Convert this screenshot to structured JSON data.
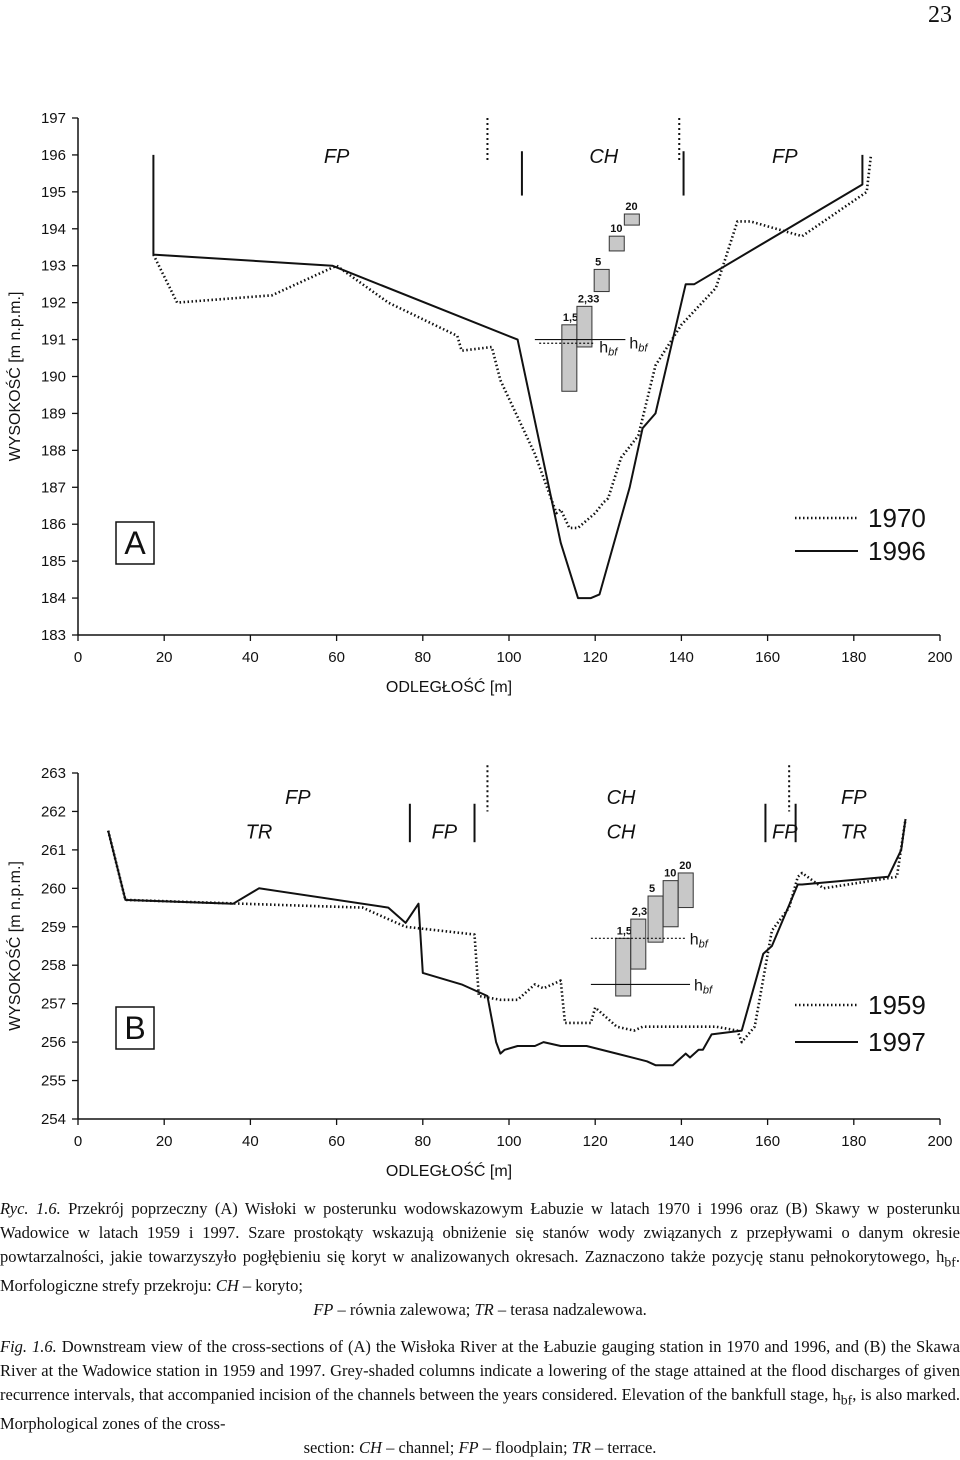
{
  "page_number": "23",
  "chart_data": [
    {
      "type": "line",
      "panel": "A",
      "xlabel": "ODLEGŁOŚĆ  [m]",
      "ylabel": "WYSOKOŚĆ   [m n.p.m.]",
      "xlim": [
        0,
        200
      ],
      "ylim": [
        183,
        197
      ],
      "x_ticks": [
        0,
        20,
        40,
        60,
        80,
        100,
        120,
        140,
        160,
        180,
        200
      ],
      "y_ticks": [
        183,
        184,
        185,
        186,
        187,
        188,
        189,
        190,
        191,
        192,
        193,
        194,
        195,
        196,
        197
      ],
      "zones": [
        {
          "label": "FP",
          "x": 60,
          "y": 196
        },
        {
          "label": "CH",
          "x": 122,
          "y": 196
        },
        {
          "label": "FP",
          "x": 164,
          "y": 196
        }
      ],
      "zone_dividers": [
        {
          "x": 95,
          "ymin": 195.8,
          "ymax": 197,
          "style": "dotted"
        },
        {
          "x": 103,
          "ymin": 194.9,
          "ymax": 196.1,
          "style": "solid"
        },
        {
          "x": 139.5,
          "ymin": 195.8,
          "ymax": 197,
          "style": "dotted"
        },
        {
          "x": 140.5,
          "ymin": 194.9,
          "ymax": 196.1,
          "style": "solid"
        }
      ],
      "series": [
        {
          "name": "1970",
          "style": "dotted",
          "x": [
            17.5,
            23,
            45,
            60,
            72,
            88,
            89,
            96,
            98,
            106,
            111,
            112,
            114,
            116,
            120,
            122,
            123,
            126,
            130,
            134,
            140,
            148,
            153,
            156,
            168,
            183,
            184
          ],
          "y": [
            193.3,
            192.0,
            192.2,
            193.0,
            192.0,
            191.1,
            190.7,
            190.8,
            189.9,
            187.9,
            186.3,
            186.4,
            185.9,
            185.9,
            186.3,
            186.6,
            186.7,
            187.8,
            188.4,
            190.3,
            191.4,
            192.4,
            194.2,
            194.2,
            193.8,
            195.0,
            196.0
          ]
        },
        {
          "name": "1996",
          "style": "solid",
          "x": [
            17.5,
            17.5,
            59,
            102,
            112,
            116,
            119,
            121,
            128,
            131,
            134,
            141,
            143,
            182,
            182
          ],
          "y": [
            196.0,
            193.3,
            193.0,
            191.0,
            185.5,
            184.0,
            184.0,
            184.1,
            187.0,
            188.6,
            189.0,
            192.5,
            192.5,
            195.2,
            196.0
          ]
        }
      ],
      "return_period_bars": [
        {
          "label": "1,5",
          "x": 114,
          "top": 191.4,
          "bottom": 189.6
        },
        {
          "label": "2,33",
          "x": 117.5,
          "top": 191.9,
          "bottom": 190.8
        },
        {
          "label": "5",
          "x": 121.5,
          "top": 192.9,
          "bottom": 192.3
        },
        {
          "label": "10",
          "x": 125,
          "top": 193.8,
          "bottom": 193.4
        },
        {
          "label": "20",
          "x": 128.5,
          "top": 194.4,
          "bottom": 194.1
        }
      ],
      "bankfull": {
        "label": "h",
        "subscript": "bf",
        "levels": [
          {
            "y": 190.9,
            "style": "dotted",
            "x": [
              107,
              120
            ]
          },
          {
            "y": 191.0,
            "style": "solid",
            "x": [
              106,
              127
            ]
          }
        ]
      },
      "legend": {
        "position": "right",
        "entries": [
          {
            "label": "1970",
            "style": "dotted"
          },
          {
            "label": "1996",
            "style": "solid"
          }
        ]
      }
    },
    {
      "type": "line",
      "panel": "B",
      "xlabel": "ODLEGŁOŚĆ  [m]",
      "ylabel": "WYSOKOŚĆ   [m n.p.m.]",
      "xlim": [
        0,
        200
      ],
      "ylim": [
        254,
        263
      ],
      "x_ticks": [
        0,
        20,
        40,
        60,
        80,
        100,
        120,
        140,
        160,
        180,
        200
      ],
      "y_ticks": [
        254,
        255,
        256,
        257,
        258,
        259,
        260,
        261,
        262,
        263
      ],
      "zones": [
        {
          "label": "FP",
          "x": 51,
          "y": 262.4
        },
        {
          "label": "TR",
          "x": 42,
          "y": 261.5
        },
        {
          "label": "FP",
          "x": 85,
          "y": 261.5
        },
        {
          "label": "CH",
          "x": 126,
          "y": 262.4
        },
        {
          "label": "CH",
          "x": 126,
          "y": 261.5
        },
        {
          "label": "FP",
          "x": 164,
          "y": 261.5
        },
        {
          "label": "FP",
          "x": 180,
          "y": 262.4
        },
        {
          "label": "TR",
          "x": 180,
          "y": 261.5
        }
      ],
      "zone_dividers": [
        {
          "x": 77,
          "ymin": 261.2,
          "ymax": 262.2,
          "style": "solid"
        },
        {
          "x": 92,
          "ymin": 261.2,
          "ymax": 262.2,
          "style": "solid"
        },
        {
          "x": 95,
          "ymin": 262.0,
          "ymax": 263.2,
          "style": "dotted"
        },
        {
          "x": 159.5,
          "ymin": 261.2,
          "ymax": 262.2,
          "style": "solid"
        },
        {
          "x": 165,
          "ymin": 262.0,
          "ymax": 263.2,
          "style": "dotted"
        },
        {
          "x": 166.5,
          "ymin": 261.2,
          "ymax": 262.2,
          "style": "solid"
        }
      ],
      "series": [
        {
          "name": "1959",
          "style": "dotted",
          "x": [
            7,
            11,
            38,
            66,
            76,
            92,
            93,
            98,
            102,
            106,
            108,
            112,
            113,
            119,
            120,
            125,
            129,
            131,
            137,
            141,
            148,
            153,
            154,
            157,
            161,
            165,
            167,
            168,
            173,
            190,
            192
          ],
          "y": [
            261.5,
            259.7,
            259.6,
            259.5,
            259.0,
            258.8,
            257.2,
            257.1,
            257.1,
            257.5,
            257.4,
            257.6,
            256.5,
            256.5,
            256.9,
            256.4,
            256.3,
            256.4,
            256.4,
            256.4,
            256.4,
            256.3,
            256.0,
            256.4,
            258.9,
            259.5,
            260.3,
            260.4,
            260.0,
            260.3,
            261.8
          ]
        },
        {
          "name": "1997",
          "style": "solid",
          "x": [
            7,
            11,
            36,
            42,
            72,
            76,
            79,
            80,
            89,
            95,
            97,
            98,
            99,
            102,
            106,
            108,
            112,
            118,
            125,
            132,
            134,
            137,
            138,
            141,
            142,
            144,
            145,
            147,
            154,
            159,
            161,
            167,
            168,
            188,
            191,
            192
          ],
          "y": [
            261.5,
            259.7,
            259.6,
            260.0,
            259.5,
            259.1,
            259.6,
            257.8,
            257.5,
            257.2,
            256.0,
            255.7,
            255.8,
            255.9,
            255.9,
            256.0,
            255.9,
            255.9,
            255.7,
            255.5,
            255.4,
            255.4,
            255.4,
            255.7,
            255.6,
            255.8,
            255.8,
            256.2,
            256.3,
            258.3,
            258.5,
            260.1,
            260.1,
            260.3,
            261.0,
            261.8
          ]
        }
      ],
      "return_period_bars": [
        {
          "label": "1,5",
          "x": 126.5,
          "top": 258.7,
          "bottom": 257.2
        },
        {
          "label": "2,33",
          "x": 130,
          "top": 259.2,
          "bottom": 257.9
        },
        {
          "label": "5",
          "x": 134,
          "top": 259.8,
          "bottom": 258.6
        },
        {
          "label": "10",
          "x": 137.5,
          "top": 260.2,
          "bottom": 259.0
        },
        {
          "label": "20",
          "x": 141,
          "top": 260.4,
          "bottom": 259.5
        }
      ],
      "bankfull": {
        "label": "h",
        "subscript": "bf",
        "levels": [
          {
            "y": 258.7,
            "style": "dotted",
            "x": [
              119,
              141
            ]
          },
          {
            "y": 257.5,
            "style": "solid",
            "x": [
              119,
              142
            ]
          }
        ]
      },
      "legend": {
        "position": "right",
        "entries": [
          {
            "label": "1959",
            "style": "dotted"
          },
          {
            "label": "1997",
            "style": "solid"
          }
        ]
      }
    }
  ],
  "caption_pl": {
    "prefix": "Ryc. 1.6.",
    "line1": "Przekrój poprzeczny (A) Wisłoki w posterunku wodowskazowym Łabuzie w latach 1970 i 1996 oraz (B) Skawy w posterunku Wadowice w latach 1959 i 1997. Szare prostokąty wskazują obniżenie się stanów wody związanych z przepływami o danym okresie powtarzalności, jakie towarzyszyło pogłębieniu się koryt w analizowanych okresach. Zaznaczono także pozycję stanu pełnokorytowego, h",
    "sub": "bf",
    "line2": ". Morfologiczne strefy przekroju: ",
    "ch": "CH",
    "ch_desc": " – koryto;",
    "fp": "FP",
    "fp_desc": " – równia zalewowa; ",
    "tr": "TR",
    "tr_desc": " – terasa nadzalewowa."
  },
  "caption_en": {
    "prefix": "Fig. 1.6.",
    "line1": "Downstream view of the cross-sections of (A) the Wisłoka River at the Łabuzie gauging station in 1970 and 1996, and (B) the Skawa River at the Wadowice station in 1959 and 1997. Grey-shaded columns indicate a lowering of the stage attained at the flood discharges of given recurrence intervals, that accompanied incision of the channels between the years considered. Elevation of the bankfull stage, h",
    "sub": "bf",
    "line2": ", is also marked. Morphological zones of the cross-",
    "line3": "section: ",
    "ch": "CH",
    "ch_desc": " – channel; ",
    "fp": "FP",
    "fp_desc": " – floodplain; ",
    "tr": "TR",
    "tr_desc": " – terrace."
  }
}
